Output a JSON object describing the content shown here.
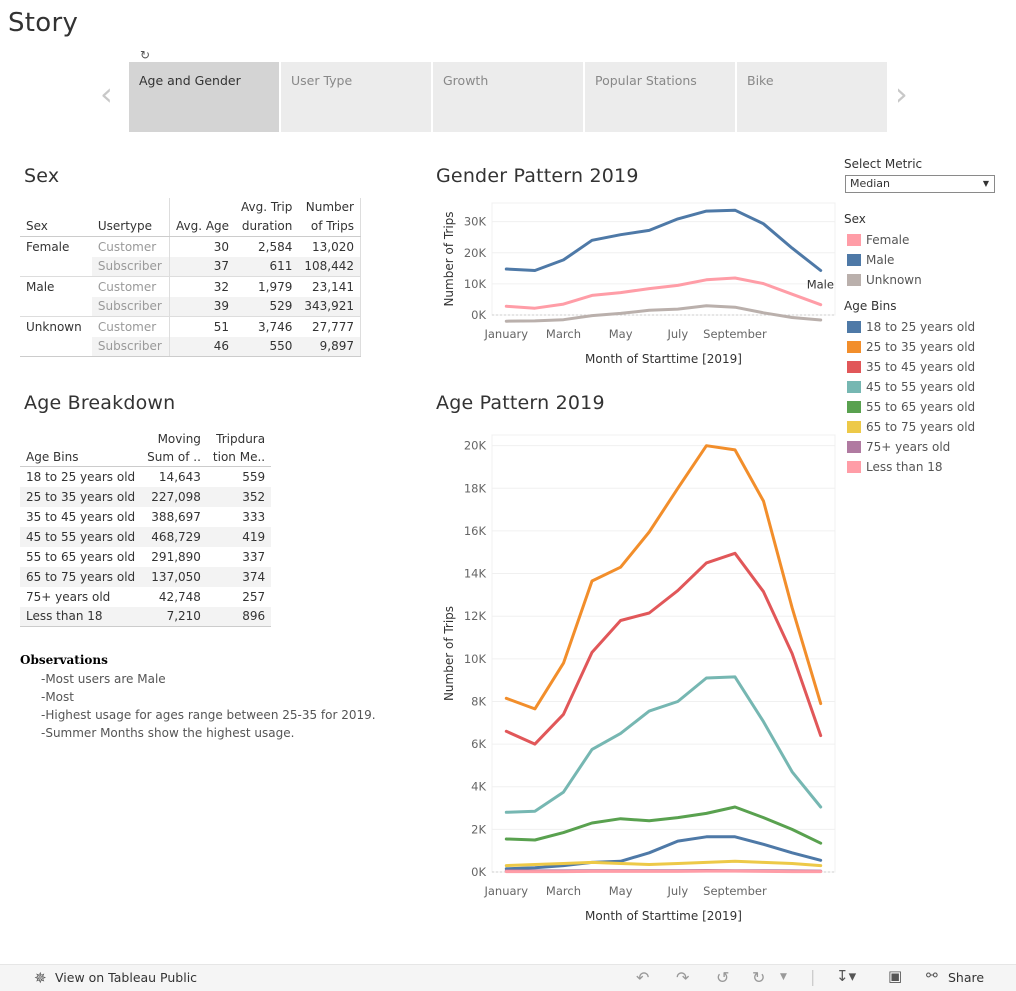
{
  "story_title": "Story",
  "nav": {
    "prev_icon": "chevron-left-icon",
    "next_icon": "chevron-right-icon",
    "spinner_icon": "refresh-icon"
  },
  "story_points": [
    {
      "label": "Age and Gender",
      "active": true
    },
    {
      "label": "User Type",
      "active": false
    },
    {
      "label": "Growth",
      "active": false
    },
    {
      "label": "Popular Stations",
      "active": false
    },
    {
      "label": "Bike",
      "active": false
    }
  ],
  "sex_section": {
    "title": "Sex",
    "headers": {
      "sex": "Sex",
      "usertype": "Usertype",
      "avg_age": "Avg. Age",
      "avg_trip_1": "Avg. Trip",
      "avg_trip_2": "duration",
      "num_trips_1": "Number",
      "num_trips_2": "of Trips"
    },
    "rows": [
      {
        "sex": "Female",
        "usertype": "Customer",
        "avg_age": "30",
        "avg_trip": "2,584",
        "num_trips": "13,020"
      },
      {
        "sex": "",
        "usertype": "Subscriber",
        "avg_age": "37",
        "avg_trip": "611",
        "num_trips": "108,442"
      },
      {
        "sex": "Male",
        "usertype": "Customer",
        "avg_age": "32",
        "avg_trip": "1,979",
        "num_trips": "23,141"
      },
      {
        "sex": "",
        "usertype": "Subscriber",
        "avg_age": "39",
        "avg_trip": "529",
        "num_trips": "343,921"
      },
      {
        "sex": "Unknown",
        "usertype": "Customer",
        "avg_age": "51",
        "avg_trip": "3,746",
        "num_trips": "27,777"
      },
      {
        "sex": "",
        "usertype": "Subscriber",
        "avg_age": "46",
        "avg_trip": "550",
        "num_trips": "9,897"
      }
    ]
  },
  "age_section": {
    "title": "Age Breakdown",
    "headers": {
      "bins": "Age Bins",
      "moving_1": "Moving",
      "moving_2": "Sum of ..",
      "trip_1": "Tripdura",
      "trip_2": "tion Me.."
    },
    "rows": [
      {
        "bin": "18 to 25 years old",
        "moving": "14,643",
        "trip": "559"
      },
      {
        "bin": "25 to 35 years old",
        "moving": "227,098",
        "trip": "352"
      },
      {
        "bin": "35 to 45 years old",
        "moving": "388,697",
        "trip": "333"
      },
      {
        "bin": "45 to 55 years old",
        "moving": "468,729",
        "trip": "419"
      },
      {
        "bin": "55 to 65 years old",
        "moving": "291,890",
        "trip": "337"
      },
      {
        "bin": "65 to 75 years old",
        "moving": "137,050",
        "trip": "374"
      },
      {
        "bin": "75+ years old",
        "moving": "42,748",
        "trip": "257"
      },
      {
        "bin": "Less than 18",
        "moving": "7,210",
        "trip": "896"
      }
    ]
  },
  "observations": {
    "title": "Observations",
    "items": [
      "-Most users are Male",
      "-Most",
      "-Highest usage for ages range between 25-35 for 2019.",
      "-Summer Months show the highest usage."
    ]
  },
  "metric": {
    "label": "Select Metric",
    "value": "Median"
  },
  "sex_legend": {
    "title": "Sex",
    "items": [
      {
        "label": "Female",
        "color": "#ff9da7"
      },
      {
        "label": "Male",
        "color": "#4e79a7"
      },
      {
        "label": "Unknown",
        "color": "#bab0ac"
      }
    ]
  },
  "age_legend": {
    "title": "Age Bins",
    "items": [
      {
        "label": "18 to 25 years old",
        "color": "#4e79a7"
      },
      {
        "label": "25 to 35 years old",
        "color": "#f28e2b"
      },
      {
        "label": "35 to 45 years old",
        "color": "#e15759"
      },
      {
        "label": "45 to 55 years old",
        "color": "#76b7b2"
      },
      {
        "label": "55 to 65 years old",
        "color": "#59a14f"
      },
      {
        "label": "65 to 75 years old",
        "color": "#edc948"
      },
      {
        "label": "75+ years old",
        "color": "#b07aa1"
      },
      {
        "label": "Less than 18",
        "color": "#ff9da7"
      }
    ]
  },
  "chart_data": [
    {
      "type": "line",
      "title": "Gender Pattern 2019",
      "xlabel": "Month of Starttime [2019]",
      "ylabel": "Number of Trips",
      "x": [
        "January",
        "February",
        "March",
        "April",
        "May",
        "June",
        "July",
        "August",
        "September",
        "October",
        "November",
        "December"
      ],
      "x_tick_labels": [
        "January",
        "March",
        "May",
        "July",
        "September"
      ],
      "y_ticks": [
        "0K",
        "10K",
        "20K",
        "30K"
      ],
      "ylim": [
        0,
        36000
      ],
      "series": [
        {
          "name": "Female",
          "color": "#ff9da7",
          "values": [
            2800,
            2200,
            3500,
            6300,
            7200,
            8500,
            9500,
            11300,
            11900,
            10100,
            6700,
            3300
          ]
        },
        {
          "name": "Male",
          "color": "#4e79a7",
          "values": [
            14800,
            14300,
            17700,
            24000,
            25800,
            27200,
            30900,
            33400,
            33700,
            29300,
            21500,
            14300
          ]
        },
        {
          "name": "Unknown",
          "color": "#bab0ac",
          "values": [
            -2000,
            -1900,
            -1500,
            -200,
            500,
            1500,
            1900,
            3000,
            2500,
            700,
            -800,
            -1600
          ]
        }
      ],
      "annotation": "Male"
    },
    {
      "type": "line",
      "title": "Age Pattern 2019",
      "xlabel": "Month of Starttime [2019]",
      "ylabel": "Number of Trips",
      "x": [
        "January",
        "February",
        "March",
        "April",
        "May",
        "June",
        "July",
        "August",
        "September",
        "October",
        "November",
        "December"
      ],
      "x_tick_labels": [
        "January",
        "March",
        "May",
        "July",
        "September"
      ],
      "y_ticks": [
        "0K",
        "2K",
        "4K",
        "6K",
        "8K",
        "10K",
        "12K",
        "14K",
        "16K",
        "18K",
        "20K"
      ],
      "ylim": [
        0,
        20500
      ],
      "series": [
        {
          "name": "18 to 25 years old",
          "color": "#4e79a7",
          "values": [
            150,
            200,
            300,
            450,
            500,
            900,
            1450,
            1650,
            1650,
            1300,
            900,
            550
          ]
        },
        {
          "name": "25 to 35 years old",
          "color": "#f28e2b",
          "values": [
            8150,
            7650,
            9800,
            13650,
            14300,
            15950,
            18000,
            20000,
            19800,
            17400,
            12400,
            7900
          ]
        },
        {
          "name": "35 to 45 years old",
          "color": "#e15759",
          "values": [
            6600,
            6000,
            7400,
            10300,
            11800,
            12150,
            13200,
            14500,
            14950,
            13150,
            10250,
            6400
          ]
        },
        {
          "name": "45 to 55 years old",
          "color": "#76b7b2",
          "values": [
            2800,
            2850,
            3750,
            5750,
            6500,
            7550,
            8000,
            9100,
            9150,
            7050,
            4700,
            3050
          ]
        },
        {
          "name": "55 to 65 years old",
          "color": "#59a14f",
          "values": [
            1550,
            1500,
            1850,
            2300,
            2500,
            2400,
            2550,
            2750,
            3050,
            2550,
            2000,
            1350
          ]
        },
        {
          "name": "65 to 75 years old",
          "color": "#edc948",
          "values": [
            300,
            350,
            400,
            450,
            400,
            350,
            400,
            450,
            500,
            450,
            400,
            300
          ]
        },
        {
          "name": "75+ years old",
          "color": "#b07aa1",
          "values": [
            50,
            50,
            50,
            60,
            60,
            60,
            60,
            70,
            60,
            60,
            50,
            40
          ]
        },
        {
          "name": "Less than 18",
          "color": "#ff9da7",
          "values": [
            20,
            20,
            20,
            30,
            30,
            30,
            30,
            40,
            40,
            30,
            20,
            20
          ]
        }
      ]
    }
  ],
  "toolbar": {
    "view_label": "View on Tableau Public",
    "share_label": "Share",
    "icons": [
      "tableau-icon",
      "undo-icon",
      "redo-icon",
      "revert-icon",
      "refresh-icon",
      "download-icon",
      "fullscreen-icon",
      "share-icon"
    ]
  }
}
